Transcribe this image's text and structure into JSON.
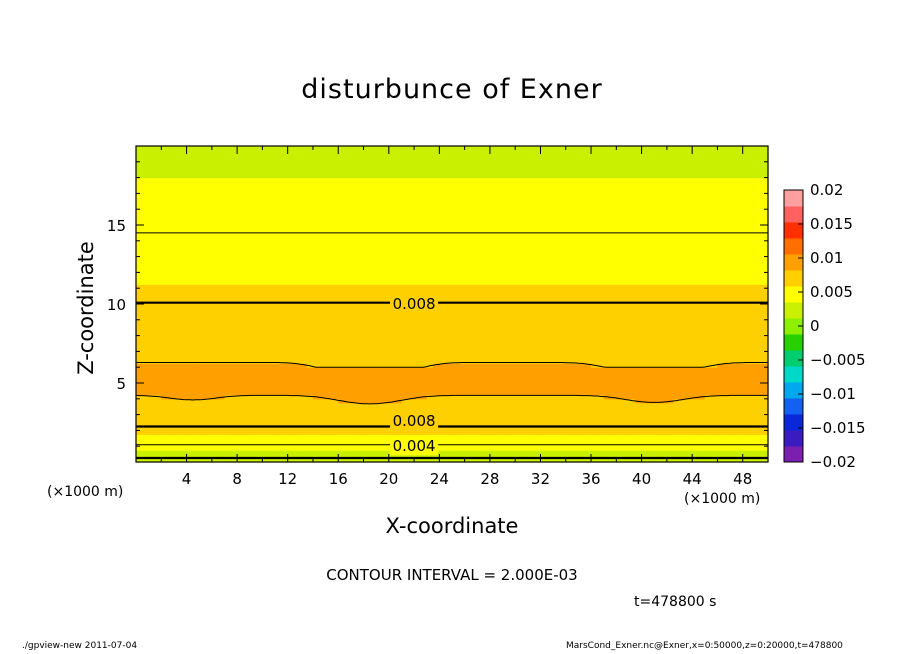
{
  "chart_data": {
    "type": "contour",
    "title": "disturbunce of Exner",
    "xlabel": "X-coordinate",
    "ylabel": "Z-coordinate",
    "x_unit": "(×1000 m)",
    "y_unit": "(×1000 m)",
    "xlim": [
      0,
      50
    ],
    "ylim": [
      0,
      20
    ],
    "x_ticks": [
      4,
      8,
      12,
      16,
      20,
      24,
      28,
      32,
      36,
      40,
      44,
      48
    ],
    "y_ticks": [
      5,
      10,
      15
    ],
    "colorbar": {
      "levels": [
        -0.02,
        -0.0175,
        -0.015,
        -0.0125,
        -0.01,
        -0.0075,
        -0.005,
        -0.0025,
        0,
        0.0025,
        0.005,
        0.0075,
        0.01,
        0.0125,
        0.015,
        0.0175,
        0.02
      ],
      "tick_labels": [
        "0.02",
        "0.015",
        "0.01",
        "0.005",
        "0",
        "−0.005",
        "−0.01",
        "−0.015",
        "−0.02"
      ],
      "colors": [
        "#7a1fb0",
        "#3a1bc0",
        "#0a28d8",
        "#1460f0",
        "#00a8f0",
        "#00d8c8",
        "#00cc70",
        "#28d000",
        "#8cf000",
        "#c8f000",
        "#ffff00",
        "#ffd000",
        "#ffa000",
        "#ff7000",
        "#ff3000",
        "#ff6060",
        "#ffa0a0"
      ]
    },
    "contour_labels": [
      {
        "text": "0.008",
        "x": 22,
        "z": 10.0
      },
      {
        "text": "0.008",
        "x": 22,
        "z": 2.6
      },
      {
        "text": "0.004",
        "x": 22,
        "z": 1.0
      }
    ],
    "contour_interval_text": "CONTOUR INTERVAL = 2.000E-03",
    "time_text": "t=478800 s"
  },
  "footer": {
    "left": "./gpview-new   2011-07-04",
    "right": "MarsCond_Exner.nc@Exner,x=0:50000,z=0:20000,t=478800"
  }
}
